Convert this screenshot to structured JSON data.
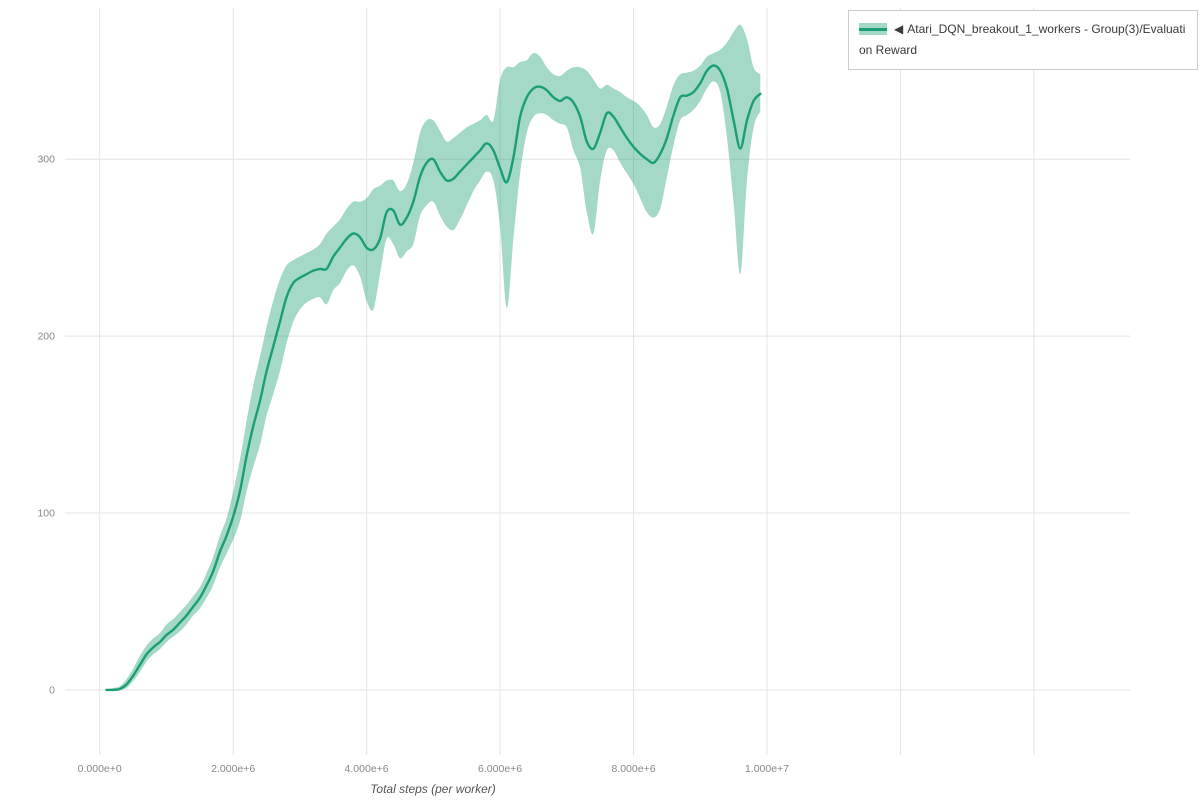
{
  "legend": {
    "toggle_icon": "◀",
    "label": "Atari_DQN_breakout_1_workers - Group(3)/Evaluation Reward"
  },
  "chart_data": {
    "type": "line",
    "title": "",
    "xlabel": "Total steps (per worker)",
    "ylabel": "",
    "grid": true,
    "legend_position": "top-right",
    "xlim": [
      -520000,
      15440000
    ],
    "ylim": [
      -36.8,
      385.5
    ],
    "x_tick_values": [
      0,
      2000000,
      4000000,
      6000000,
      8000000,
      10000000
    ],
    "x_tick_labels": [
      "0.000e+0",
      "2.000e+6",
      "4.000e+6",
      "6.000e+6",
      "8.000e+6",
      "1.000e+7"
    ],
    "y_tick_values": [
      0,
      100,
      200,
      300
    ],
    "y_tick_labels": [
      "0",
      "100",
      "200",
      "300"
    ],
    "series": [
      {
        "name": "Atari_DQN_breakout_1_workers - Group(3)/Evaluation Reward",
        "color": "#1b9e77",
        "band_color": "rgba(28,160,118,0.40)",
        "x": [
          100000,
          200000,
          300000,
          400000,
          500000,
          600000,
          700000,
          800000,
          900000,
          1000000,
          1100000,
          1200000,
          1300000,
          1400000,
          1500000,
          1600000,
          1700000,
          1800000,
          1900000,
          2000000,
          2100000,
          2200000,
          2300000,
          2400000,
          2500000,
          2600000,
          2700000,
          2800000,
          2900000,
          3000000,
          3100000,
          3200000,
          3300000,
          3400000,
          3500000,
          3600000,
          3700000,
          3800000,
          3900000,
          4000000,
          4100000,
          4200000,
          4300000,
          4400000,
          4500000,
          4600000,
          4700000,
          4800000,
          4900000,
          5000000,
          5100000,
          5200000,
          5300000,
          5400000,
          5500000,
          5600000,
          5700000,
          5800000,
          5900000,
          6000000,
          6100000,
          6200000,
          6300000,
          6400000,
          6500000,
          6600000,
          6700000,
          6800000,
          6900000,
          7000000,
          7100000,
          7200000,
          7300000,
          7400000,
          7500000,
          7600000,
          7700000,
          7800000,
          7900000,
          8000000,
          8100000,
          8200000,
          8300000,
          8400000,
          8500000,
          8600000,
          8700000,
          8800000,
          8900000,
          9000000,
          9100000,
          9200000,
          9300000,
          9400000,
          9500000,
          9600000,
          9700000,
          9800000,
          9900000
        ],
        "mean": [
          0,
          0,
          0.5,
          3,
          8,
          14,
          20,
          24,
          27,
          31,
          34,
          38,
          42,
          47,
          52,
          59,
          67,
          78,
          87,
          98,
          112,
          132,
          149,
          163,
          180,
          194,
          208,
          222,
          230,
          233,
          235,
          237,
          238,
          238,
          245,
          250,
          255,
          258,
          256,
          250,
          249,
          255,
          270,
          271,
          263,
          267,
          276,
          290,
          298,
          300,
          293,
          288,
          289,
          293,
          297,
          301,
          305,
          309,
          305,
          295,
          287,
          301,
          324,
          335,
          340,
          341,
          339,
          335,
          333,
          335,
          332,
          324,
          310,
          306,
          315,
          326,
          324,
          318,
          312,
          307,
          303,
          300,
          298,
          303,
          312,
          325,
          335,
          336,
          338,
          343,
          350,
          353,
          350,
          340,
          322,
          306,
          322,
          333,
          337
        ],
        "lower": [
          0,
          0,
          0,
          1,
          5,
          10,
          16,
          20,
          23,
          27,
          30,
          33,
          37,
          42,
          46,
          52,
          59,
          69,
          77,
          85,
          95,
          112,
          126,
          138,
          155,
          167,
          180,
          196,
          208,
          215,
          219,
          221,
          222,
          218,
          226,
          230,
          237,
          240,
          234,
          220,
          215,
          235,
          255,
          252,
          244,
          248,
          252,
          268,
          274,
          276,
          268,
          262,
          260,
          266,
          274,
          282,
          288,
          293,
          288,
          262,
          216,
          255,
          292,
          315,
          324,
          326,
          325,
          322,
          320,
          318,
          305,
          295,
          270,
          258,
          288,
          305,
          305,
          298,
          292,
          286,
          278,
          270,
          267,
          272,
          290,
          308,
          322,
          325,
          328,
          333,
          340,
          344,
          338,
          312,
          275,
          235,
          288,
          318,
          327
        ],
        "upper": [
          0,
          1,
          2,
          6,
          12,
          19,
          25,
          29,
          32,
          37,
          40,
          44,
          48,
          53,
          58,
          66,
          75,
          87,
          97,
          112,
          130,
          152,
          172,
          188,
          205,
          220,
          232,
          240,
          243,
          245,
          247,
          249,
          252,
          258,
          262,
          266,
          272,
          276,
          276,
          278,
          283,
          285,
          288,
          288,
          282,
          286,
          298,
          315,
          322,
          322,
          316,
          310,
          312,
          315,
          318,
          320,
          322,
          325,
          322,
          345,
          352,
          352,
          355,
          356,
          360,
          358,
          352,
          348,
          347,
          350,
          352,
          352,
          350,
          345,
          340,
          342,
          340,
          338,
          335,
          333,
          330,
          325,
          318,
          320,
          330,
          342,
          348,
          349,
          350,
          353,
          358,
          360,
          362,
          366,
          372,
          376,
          368,
          352,
          348
        ]
      }
    ]
  }
}
